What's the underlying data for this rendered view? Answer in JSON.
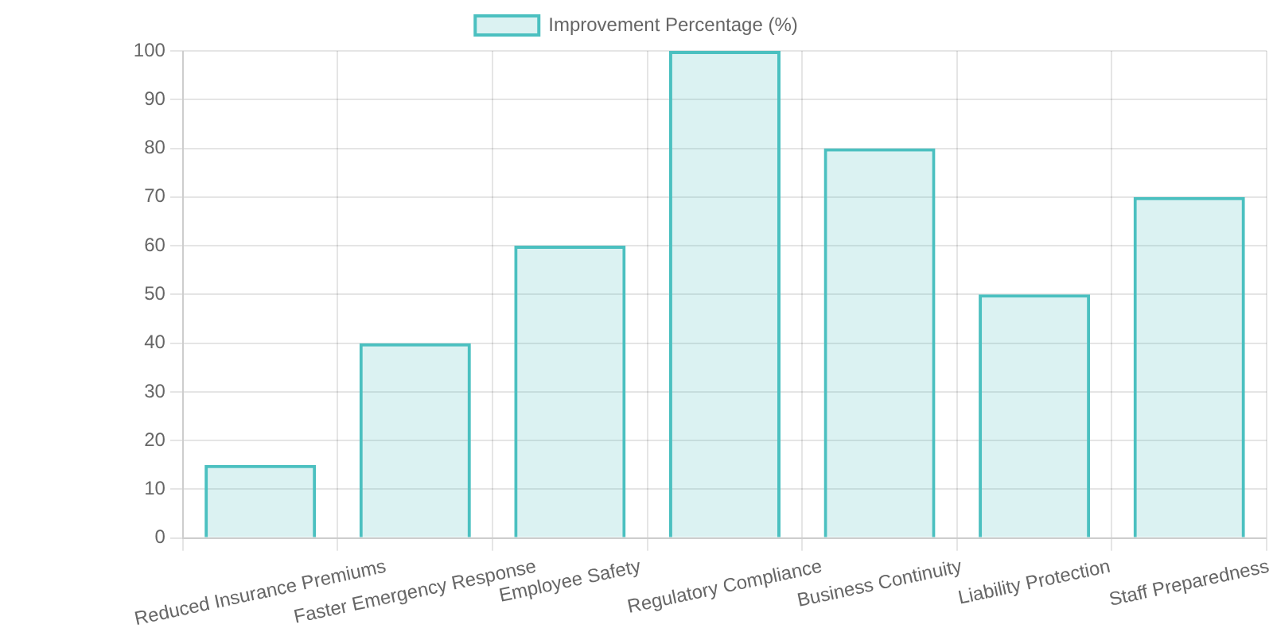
{
  "chart_data": {
    "type": "bar",
    "categories": [
      "Reduced Insurance Premiums",
      "Faster Emergency Response",
      "Employee Safety",
      "Regulatory Compliance",
      "Business Continuity",
      "Liability Protection",
      "Staff Preparedness"
    ],
    "series": [
      {
        "name": "Improvement Percentage (%)",
        "color": "#4bc0c0",
        "values": [
          15,
          40,
          60,
          100,
          80,
          50,
          70
        ]
      }
    ],
    "ylim": [
      0,
      100
    ],
    "yticks": [
      0,
      10,
      20,
      30,
      40,
      50,
      60,
      70,
      80,
      90,
      100
    ],
    "grid": true,
    "legend": "top"
  }
}
